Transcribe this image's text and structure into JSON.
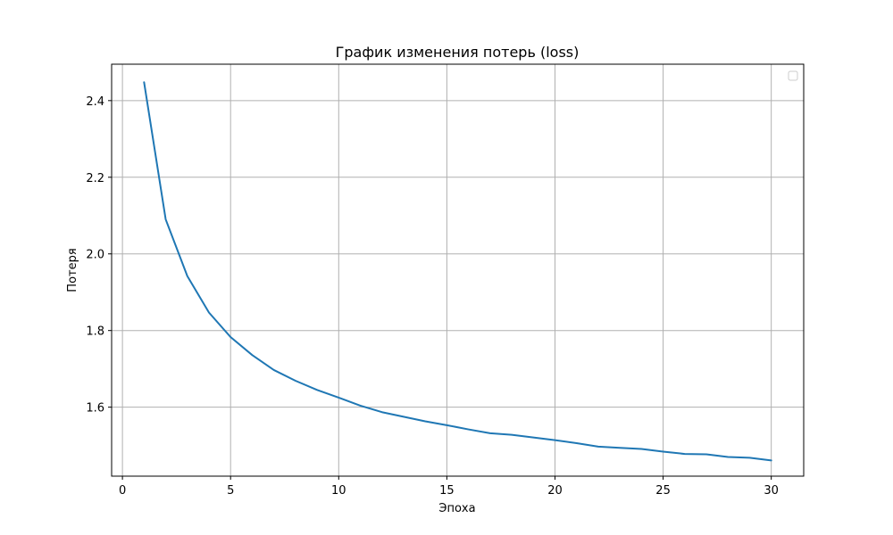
{
  "chart_data": {
    "type": "line",
    "title": "График изменения потерь (loss)",
    "xlabel": "Эпоха",
    "ylabel": "Потеря",
    "xlim": [
      -0.5,
      31.5
    ],
    "ylim": [
      1.42,
      2.495
    ],
    "x_ticks": [
      0,
      5,
      10,
      15,
      20,
      25,
      30
    ],
    "x_tick_labels": [
      "0",
      "5",
      "10",
      "15",
      "20",
      "25",
      "30"
    ],
    "y_ticks": [
      1.6,
      1.8,
      2.0,
      2.2,
      2.4
    ],
    "y_tick_labels": [
      "1.6",
      "1.8",
      "2.0",
      "2.2",
      "2.4"
    ],
    "grid": true,
    "legend": {
      "placement": "top-right",
      "entries": []
    },
    "series": [
      {
        "color": "#1f77b4",
        "x": [
          1,
          2,
          3,
          4,
          5,
          6,
          7,
          8,
          9,
          10,
          11,
          12,
          13,
          14,
          15,
          16,
          17,
          18,
          19,
          20,
          21,
          22,
          23,
          24,
          25,
          26,
          27,
          28,
          29,
          30
        ],
        "y": [
          2.448,
          2.09,
          1.942,
          1.847,
          1.783,
          1.736,
          1.697,
          1.669,
          1.645,
          1.625,
          1.604,
          1.587,
          1.575,
          1.563,
          1.553,
          1.542,
          1.532,
          1.528,
          1.521,
          1.514,
          1.506,
          1.497,
          1.494,
          1.491,
          1.484,
          1.478,
          1.477,
          1.47,
          1.468,
          1.461
        ]
      }
    ]
  }
}
